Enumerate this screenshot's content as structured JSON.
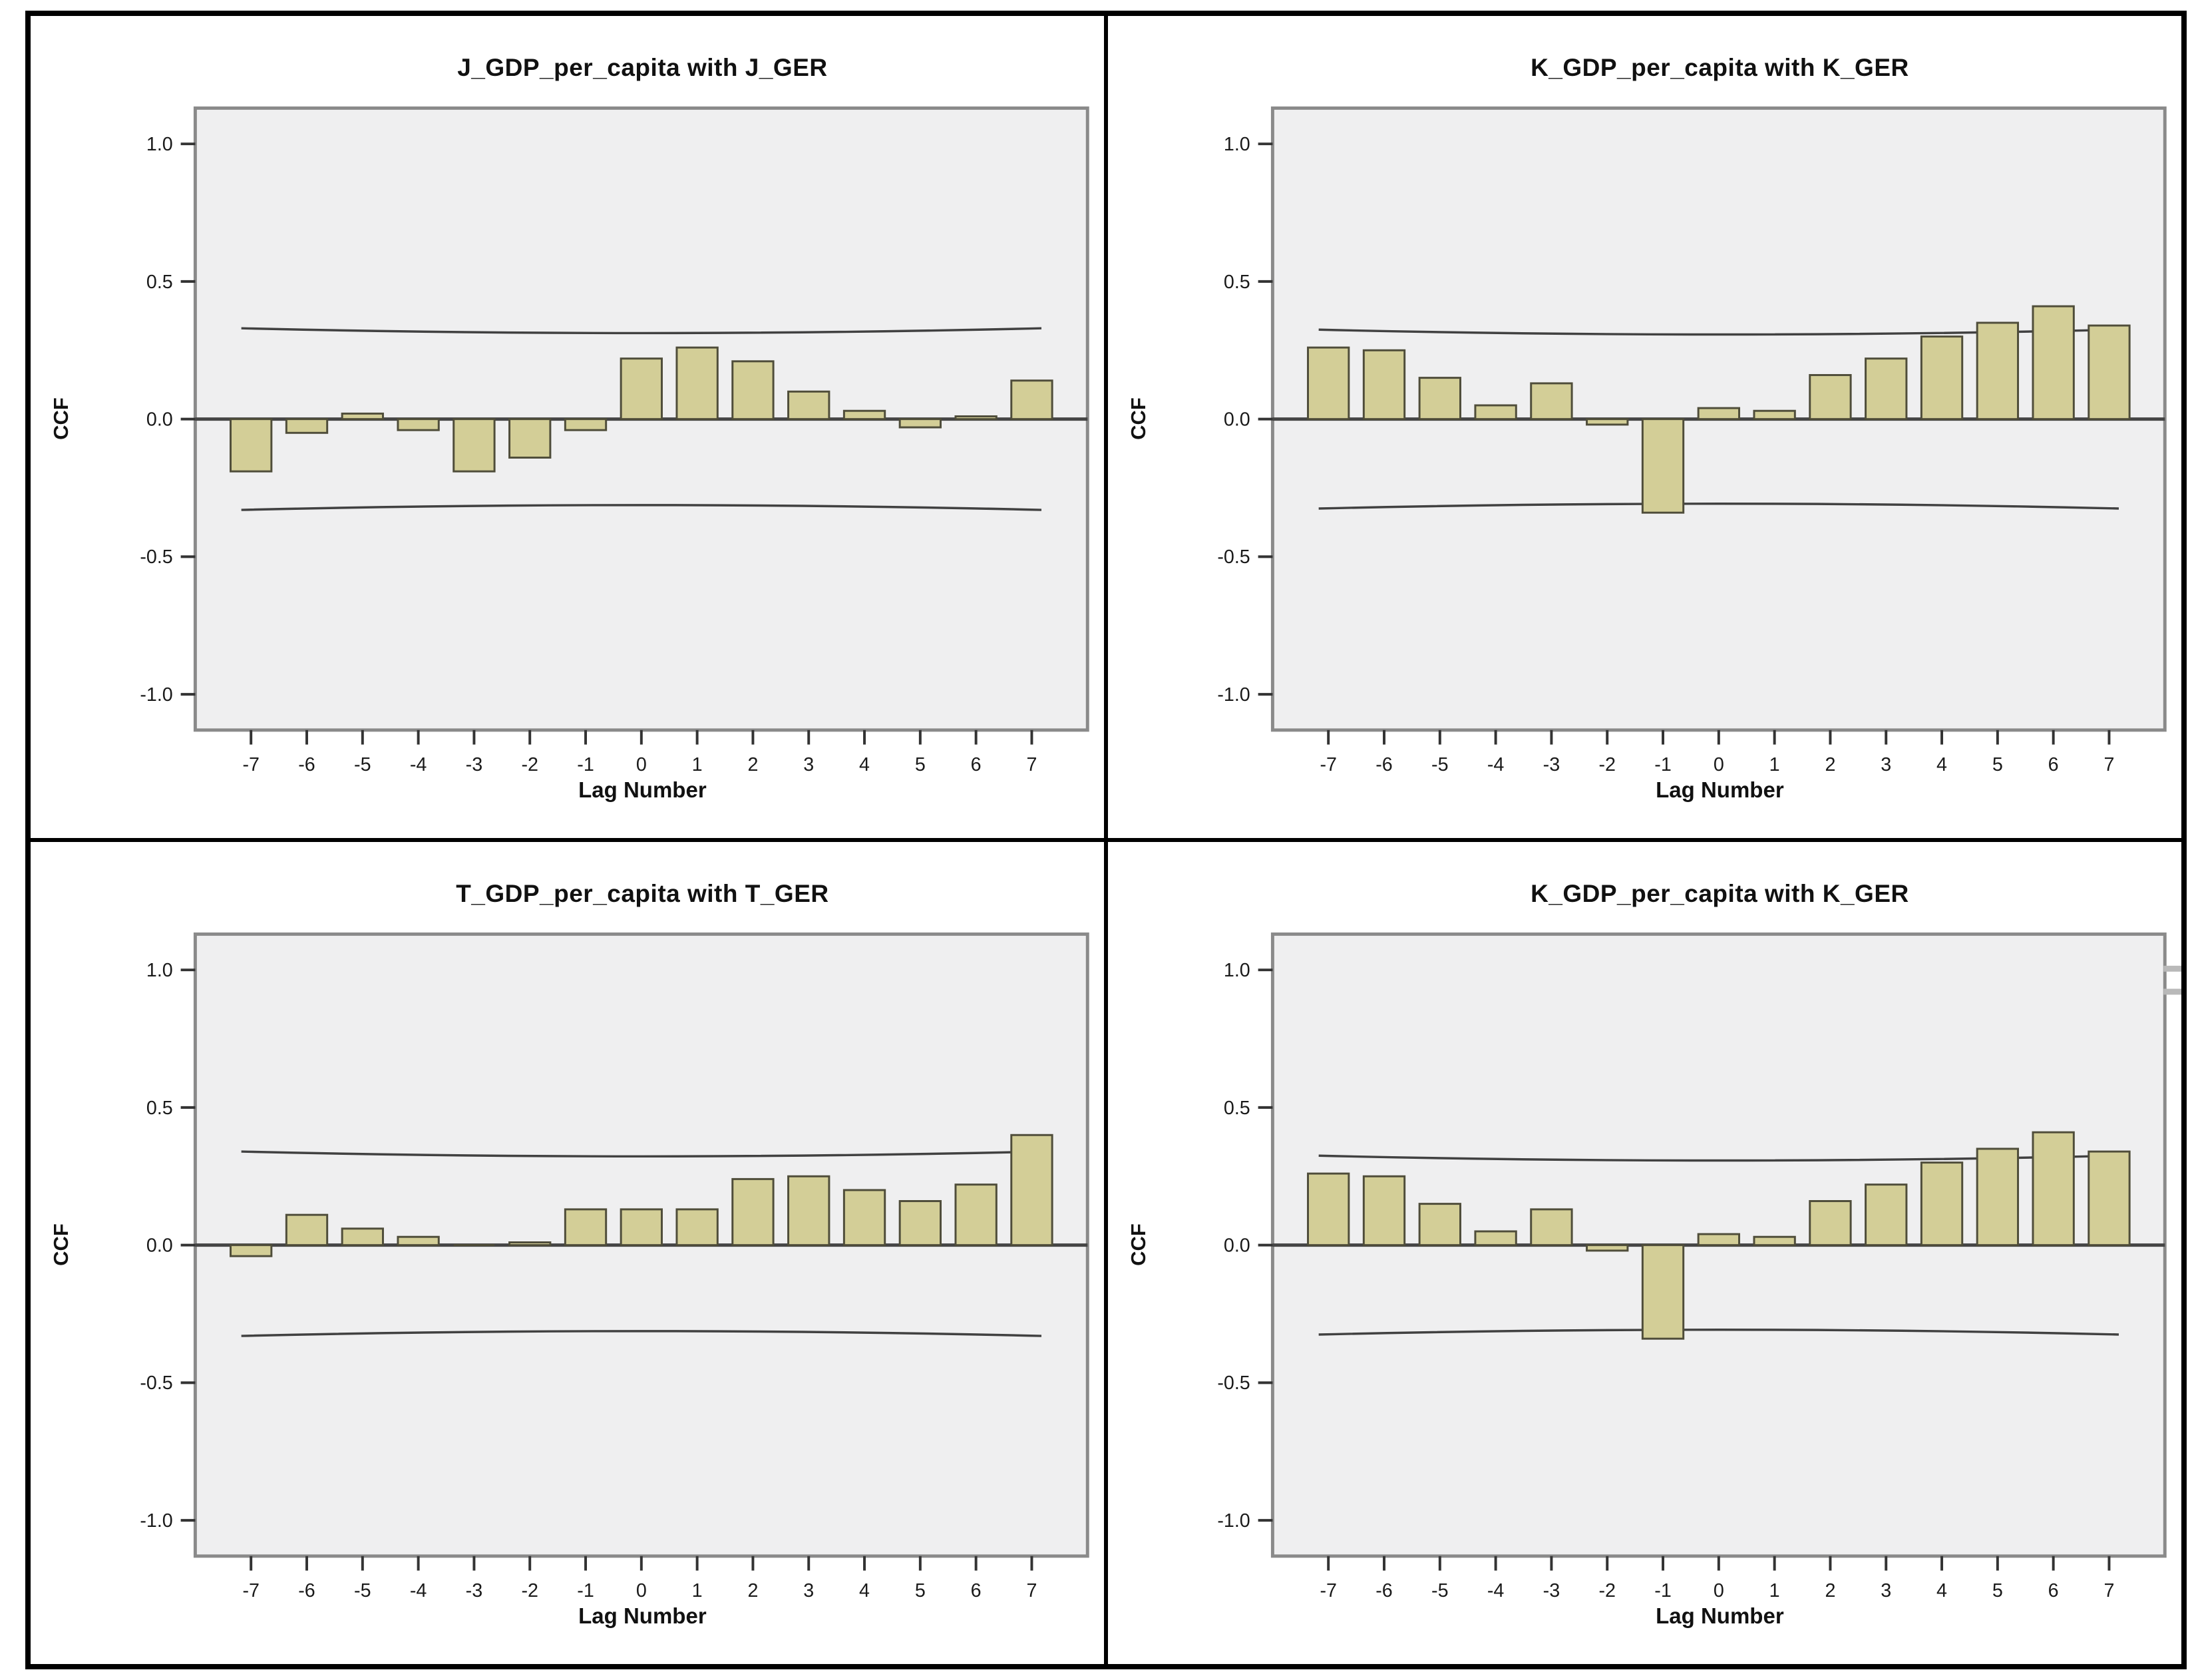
{
  "colors": {
    "bar_fill": "#d3ce97",
    "bar_border": "#4f4d3a",
    "plot_bg": "#efeff0",
    "plot_frame": "#8a8a8a",
    "zero_line": "#454545",
    "ci_line": "#2e2e2e",
    "tick": "#333333",
    "text": "#1a1a1a",
    "grid_border": "#000000",
    "stray_tick": "#b9b9b9"
  },
  "axes": {
    "y_tick_labels": [
      "1.0",
      "0.5",
      "0.0",
      "-0.5",
      "-1.0"
    ],
    "x_tick_labels": [
      "-7",
      "-6",
      "-5",
      "-4",
      "-3",
      "-2",
      "-1",
      "0",
      "1",
      "2",
      "3",
      "4",
      "5",
      "6",
      "7"
    ],
    "x_axis_title": "Lag Number",
    "y_axis_title": "CCF"
  },
  "chart_data": [
    {
      "type": "bar",
      "title": "J_GDP_per_capita with J_GER",
      "xlabel": "Lag Number",
      "ylabel": "CCF",
      "categories": [
        "-7",
        "-6",
        "-5",
        "-4",
        "-3",
        "-2",
        "-1",
        "0",
        "1",
        "2",
        "3",
        "4",
        "5",
        "6",
        "7"
      ],
      "values": [
        -0.19,
        -0.05,
        0.02,
        -0.04,
        -0.19,
        -0.14,
        -0.04,
        0.22,
        0.26,
        0.21,
        0.1,
        0.03,
        -0.03,
        0.01,
        0.14
      ],
      "ci_upper": 0.33,
      "ci_lower": -0.33,
      "ylim": [
        -1.13,
        1.13
      ],
      "legend": "none",
      "grid": false
    },
    {
      "type": "bar",
      "title": "K_GDP_per_capita with K_GER",
      "xlabel": "Lag Number",
      "ylabel": "CCF",
      "categories": [
        "-7",
        "-6",
        "-5",
        "-4",
        "-3",
        "-2",
        "-1",
        "0",
        "1",
        "2",
        "3",
        "4",
        "5",
        "6",
        "7"
      ],
      "values": [
        0.26,
        0.25,
        0.15,
        0.05,
        0.13,
        -0.02,
        -0.34,
        0.04,
        0.03,
        0.16,
        0.22,
        0.3,
        0.35,
        0.41,
        0.34
      ],
      "ci_upper": 0.325,
      "ci_lower": -0.325,
      "ylim": [
        -1.13,
        1.13
      ],
      "legend": "none",
      "grid": false
    },
    {
      "type": "bar",
      "title": "T_GDP_per_capita with T_GER",
      "xlabel": "Lag Number",
      "ylabel": "CCF",
      "categories": [
        "-7",
        "-6",
        "-5",
        "-4",
        "-3",
        "-2",
        "-1",
        "0",
        "1",
        "2",
        "3",
        "4",
        "5",
        "6",
        "7"
      ],
      "values": [
        -0.04,
        0.11,
        0.06,
        0.03,
        0.0,
        0.01,
        0.13,
        0.13,
        0.13,
        0.24,
        0.25,
        0.2,
        0.16,
        0.22,
        0.4
      ],
      "ci_upper": 0.34,
      "ci_lower": -0.33,
      "ylim": [
        -1.13,
        1.13
      ],
      "legend": "none",
      "grid": false
    },
    {
      "type": "bar",
      "title": "K_GDP_per_capita with K_GER",
      "xlabel": "Lag Number",
      "ylabel": "CCF",
      "categories": [
        "-7",
        "-6",
        "-5",
        "-4",
        "-3",
        "-2",
        "-1",
        "0",
        "1",
        "2",
        "3",
        "4",
        "5",
        "6",
        "7"
      ],
      "values": [
        0.26,
        0.25,
        0.15,
        0.05,
        0.13,
        -0.02,
        -0.34,
        0.04,
        0.03,
        0.16,
        0.22,
        0.3,
        0.35,
        0.41,
        0.34
      ],
      "ci_upper": 0.325,
      "ci_lower": -0.325,
      "ylim": [
        -1.13,
        1.13
      ],
      "legend": "none",
      "grid": false,
      "stray_right_ticks": [
        188,
        223
      ]
    }
  ]
}
